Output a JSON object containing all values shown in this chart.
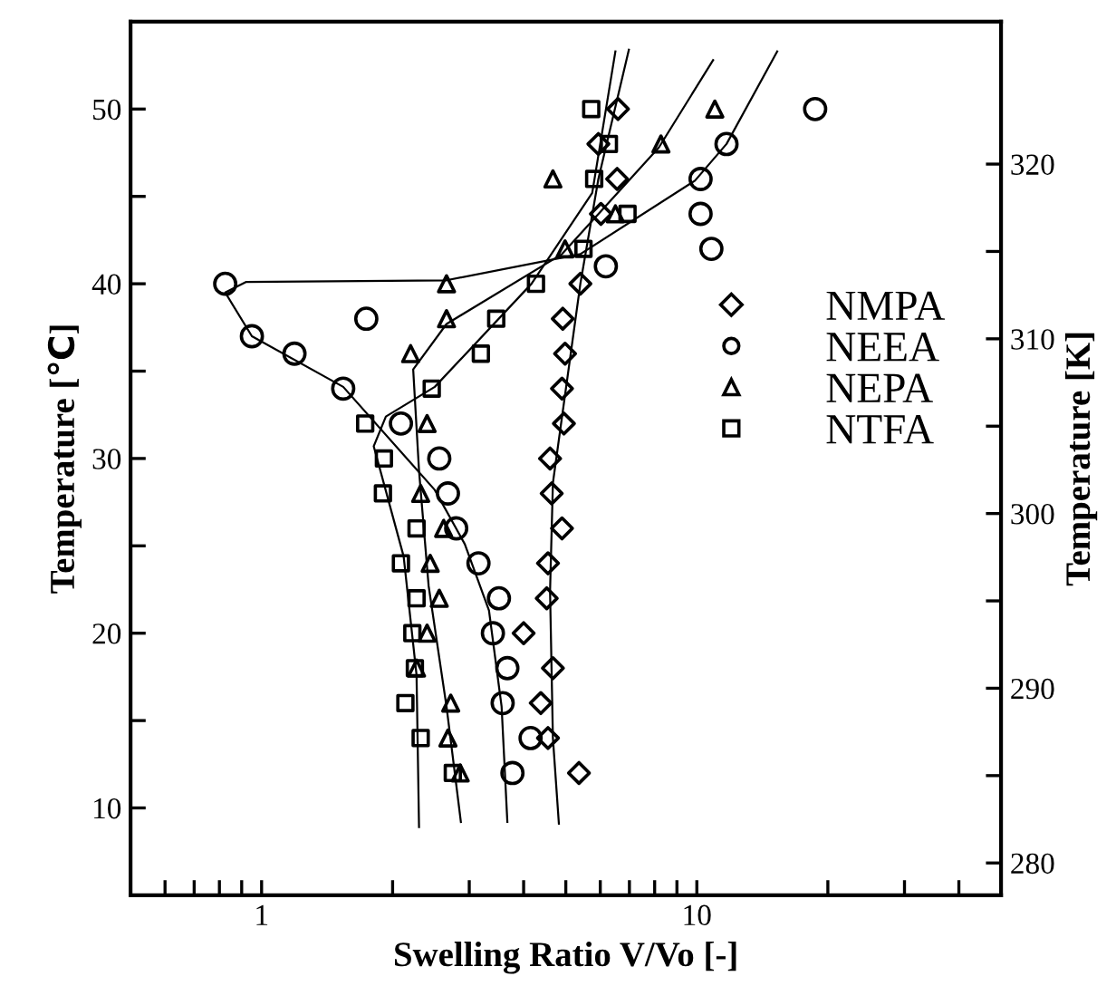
{
  "chart_data": {
    "type": "scatter",
    "xlabel": "Swelling Ratio V/Vo [-]",
    "ylabel": "Temperature [℃]",
    "y2label": "Temperature [K]",
    "log": "x",
    "grid": false,
    "legend": "right",
    "xlim": [
      0.5,
      50
    ],
    "xticks": [
      {
        "value": 0.6,
        "label": null
      },
      {
        "value": 0.7,
        "label": null
      },
      {
        "value": 0.8,
        "label": null
      },
      {
        "value": 0.9,
        "label": null
      },
      1,
      {
        "value": 2,
        "label": null
      },
      {
        "value": 3,
        "label": null
      },
      {
        "value": 4,
        "label": null
      },
      {
        "value": 5,
        "label": null
      },
      {
        "value": 6,
        "label": null
      },
      {
        "value": 7,
        "label": null
      },
      {
        "value": 8,
        "label": null
      },
      {
        "value": 9,
        "label": null
      },
      10,
      {
        "value": 20,
        "label": null
      },
      {
        "value": 30,
        "label": null
      },
      {
        "value": 40,
        "label": null
      }
    ],
    "ylim": [
      5,
      55
    ],
    "yticks": [
      10,
      {
        "value": 15,
        "label": null
      },
      20,
      {
        "value": 25,
        "label": null
      },
      30,
      {
        "value": 35,
        "label": null
      },
      40,
      {
        "value": 45,
        "label": null
      },
      50
    ],
    "y2lim": [
      278.15,
      328.15
    ],
    "y2ticks": [
      280,
      {
        "value": 285,
        "label": null
      },
      290,
      {
        "value": 295,
        "label": null
      },
      300,
      {
        "value": 305,
        "label": null
      },
      310,
      {
        "value": 315,
        "label": null
      },
      320
    ],
    "series": [
      {
        "name": "NMPA",
        "marker": "diamond",
        "color": "#000000",
        "x": [
          6.59,
          5.94,
          6.56,
          6.02,
          5.4,
          4.92,
          4.98,
          4.9,
          4.95,
          4.6,
          4.64,
          4.9,
          4.55,
          4.52,
          4.0,
          4.67,
          4.38,
          4.55,
          5.36
        ],
        "values": [
          50,
          48,
          46,
          44,
          40,
          38,
          36,
          34,
          32,
          30,
          28,
          26,
          24,
          22,
          20,
          18,
          16,
          14,
          12
        ]
      },
      {
        "name": "NEEA",
        "marker": "circle",
        "color": "#000000",
        "x": [
          18.7,
          11.7,
          10.2,
          10.2,
          10.8,
          6.18,
          0.825,
          1.74,
          0.95,
          1.19,
          1.54,
          2.09,
          2.56,
          2.68,
          2.8,
          3.15,
          3.51,
          3.4,
          3.67,
          3.58,
          4.15,
          3.77
        ],
        "values": [
          50,
          48,
          46,
          44,
          42,
          41,
          40,
          38,
          37,
          36,
          34,
          32,
          30,
          28,
          26,
          24,
          22,
          20,
          18,
          16,
          14,
          12
        ]
      },
      {
        "name": "NEPA",
        "marker": "triangle",
        "color": "#000000",
        "x": [
          11.0,
          8.27,
          4.67,
          6.5,
          4.98,
          2.66,
          2.66,
          2.2,
          2.4,
          2.32,
          2.62,
          2.44,
          2.56,
          2.4,
          2.27,
          2.72,
          2.68,
          2.86
        ],
        "values": [
          50,
          48,
          46,
          44,
          42,
          40,
          38,
          36,
          32,
          28,
          26,
          24,
          22,
          20,
          18,
          16,
          14,
          12
        ]
      },
      {
        "name": "NTFA",
        "marker": "square",
        "color": "#000000",
        "x": [
          5.72,
          6.28,
          5.81,
          6.93,
          5.49,
          4.27,
          3.46,
          3.19,
          2.46,
          1.73,
          1.91,
          1.9,
          2.27,
          2.09,
          2.27,
          2.22,
          2.25,
          2.14,
          2.32,
          2.75
        ],
        "values": [
          50,
          48,
          46,
          44,
          42,
          40,
          38,
          36,
          34,
          32,
          30,
          28,
          26,
          24,
          22,
          20,
          18,
          16,
          14,
          12
        ]
      },
      {
        "type": "line",
        "marker": "none",
        "line_style": "solid",
        "color": "#000000",
        "x": [
          4.82,
          4.67,
          4.6,
          4.67,
          5.4,
          5.94,
          6.98
        ],
        "values": [
          9.1,
          14,
          22.4,
          28.6,
          40,
          46,
          53.4
        ]
      },
      {
        "type": "line",
        "marker": "none",
        "line_style": "solid",
        "color": "#000000",
        "x": [
          2.3,
          2.27,
          2.12,
          1.81,
          1.93,
          2.5,
          4.17,
          5.75,
          6.5
        ],
        "values": [
          8.9,
          17.6,
          24.4,
          30.7,
          32.4,
          34.1,
          40,
          45.2,
          53.3
        ]
      },
      {
        "type": "line",
        "marker": "none",
        "line_style": "solid",
        "color": "#000000",
        "x": [
          2.87,
          2.66,
          2.42,
          2.3,
          2.23,
          2.66,
          4.9,
          8.18,
          10.9
        ],
        "values": [
          9.2,
          15.8,
          22.7,
          29.3,
          35.1,
          37.7,
          41.7,
          47.8,
          52.8
        ]
      },
      {
        "type": "line",
        "marker": "none",
        "line_style": "solid",
        "color": "#000000",
        "x": [
          3.67,
          3.56,
          3.33,
          2.93,
          2.5,
          1.54,
          0.95,
          0.825,
          0.92,
          2.66,
          5.4,
          9.9,
          11.7,
          15.3
        ],
        "values": [
          9.2,
          15.8,
          21.3,
          25.1,
          28.2,
          34.1,
          37,
          39.5,
          40.1,
          40.2,
          41.7,
          45.9,
          48,
          53.3
        ]
      }
    ]
  }
}
